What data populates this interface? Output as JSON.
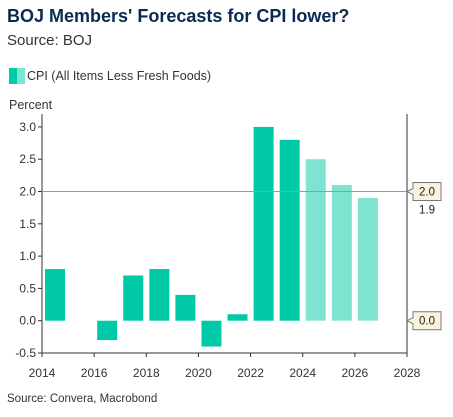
{
  "header": {
    "title": "BOJ Members' Forecasts for CPI lower?",
    "subtitle": "Source: BOJ"
  },
  "footer": {
    "source": "Source: Convera, Macrobond"
  },
  "colors": {
    "actual": "#00c9a7",
    "forecast": "#7fe3d1",
    "reference_line": "#999999"
  },
  "chart_data": {
    "type": "bar",
    "ylabel": "Percent",
    "xlim": [
      2014,
      2028
    ],
    "ylim": [
      -0.5,
      3.2
    ],
    "x_ticks": [
      "2014",
      "2016",
      "2018",
      "2020",
      "2022",
      "2024",
      "2026",
      "2028"
    ],
    "y_ticks": [
      "-0.5",
      "0.0",
      "0.5",
      "1.0",
      "1.5",
      "2.0",
      "2.5",
      "3.0"
    ],
    "legend": {
      "placement": "top-left",
      "label": "CPI (All Items Less Fresh Foods)"
    },
    "series": [
      {
        "name": "CPI (All Items Less Fresh Foods)",
        "points": [
          {
            "x": 2014,
            "y": 0.8,
            "kind": "actual"
          },
          {
            "x": 2016,
            "y": -0.3,
            "kind": "actual"
          },
          {
            "x": 2017,
            "y": 0.7,
            "kind": "actual"
          },
          {
            "x": 2018,
            "y": 0.8,
            "kind": "actual"
          },
          {
            "x": 2019,
            "y": 0.4,
            "kind": "actual"
          },
          {
            "x": 2020,
            "y": -0.4,
            "kind": "actual"
          },
          {
            "x": 2021,
            "y": 0.1,
            "kind": "actual"
          },
          {
            "x": 2022,
            "y": 3.0,
            "kind": "actual"
          },
          {
            "x": 2023,
            "y": 2.8,
            "kind": "actual"
          },
          {
            "x": 2024,
            "y": 2.5,
            "kind": "forecast"
          },
          {
            "x": 2025,
            "y": 2.1,
            "kind": "forecast"
          },
          {
            "x": 2026,
            "y": 1.9,
            "kind": "forecast"
          }
        ]
      }
    ],
    "reference_lines": [
      {
        "y": 2.0,
        "label": "2.0"
      },
      {
        "y": 0.0,
        "label": "0.0"
      }
    ],
    "annotations": [
      {
        "text": "1.9"
      }
    ]
  }
}
